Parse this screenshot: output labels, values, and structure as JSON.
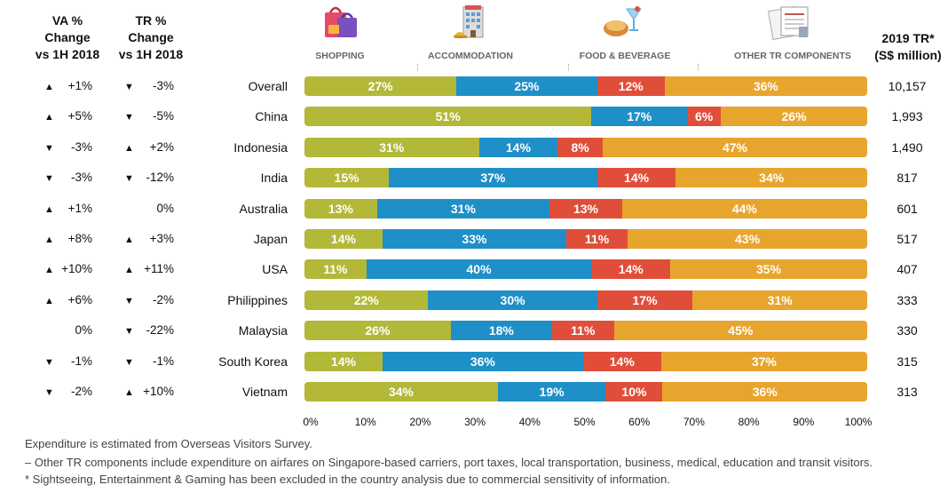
{
  "headers": {
    "va": [
      "VA %",
      "Change",
      "vs 1H 2018"
    ],
    "tr": [
      "TR %",
      "Change",
      "vs 1H 2018"
    ],
    "total": [
      "2019 TR*",
      "(S$ million)"
    ]
  },
  "categories": [
    {
      "label": "SHOPPING",
      "icon": "shopping-bags-icon",
      "color": "#b3b838"
    },
    {
      "label": "ACCOMMODATION",
      "icon": "hotel-building-icon",
      "color": "#1f8fc7"
    },
    {
      "label": "FOOD & BEVERAGE",
      "icon": "food-drink-icon",
      "color": "#e04e3a"
    },
    {
      "label": "OTHER TR COMPONENTS",
      "icon": "documents-icon",
      "color": "#e8a52e"
    }
  ],
  "chart_data": {
    "type": "bar",
    "orientation": "horizontal",
    "stacked": true,
    "xlim": [
      0,
      100
    ],
    "xticks": [
      "0%",
      "10%",
      "20%",
      "30%",
      "40%",
      "50%",
      "60%",
      "70%",
      "80%",
      "90%",
      "100%"
    ],
    "rows": [
      {
        "country": "Overall",
        "va_dir": "up",
        "va": "+1%",
        "tr_dir": "down",
        "tr": "-3%",
        "total": "10,157",
        "values": [
          27,
          25,
          12,
          36
        ],
        "labels": [
          "27%",
          "25%",
          "12%",
          "36%"
        ]
      },
      {
        "country": "China",
        "va_dir": "up",
        "va": "+5%",
        "tr_dir": "down",
        "tr": "-5%",
        "total": "1,993",
        "values": [
          51,
          17,
          6,
          26
        ],
        "labels": [
          "51%",
          "17%",
          "6%",
          "26%"
        ]
      },
      {
        "country": "Indonesia",
        "va_dir": "down",
        "va": "-3%",
        "tr_dir": "up",
        "tr": "+2%",
        "total": "1,490",
        "values": [
          31,
          14,
          8,
          47
        ],
        "labels": [
          "31%",
          "14%",
          "8%",
          "47%"
        ]
      },
      {
        "country": "India",
        "va_dir": "down",
        "va": "-3%",
        "tr_dir": "down",
        "tr": "-12%",
        "total": "817",
        "values": [
          15,
          37,
          14,
          34
        ],
        "labels": [
          "15%",
          "37%",
          "14%",
          "34%"
        ]
      },
      {
        "country": "Australia",
        "va_dir": "up",
        "va": "+1%",
        "tr_dir": "",
        "tr": "0%",
        "total": "601",
        "values": [
          13,
          31,
          13,
          44
        ],
        "labels": [
          "13%",
          "31%",
          "13%",
          "44%"
        ]
      },
      {
        "country": "Japan",
        "va_dir": "up",
        "va": "+8%",
        "tr_dir": "up",
        "tr": "+3%",
        "total": "517",
        "values": [
          14,
          33,
          11,
          43
        ],
        "labels": [
          "14%",
          "33%",
          "11%",
          "43%"
        ]
      },
      {
        "country": "USA",
        "va_dir": "up",
        "va": "+10%",
        "tr_dir": "up",
        "tr": "+11%",
        "total": "407",
        "values": [
          11,
          40,
          14,
          35
        ],
        "labels": [
          "11%",
          "40%",
          "14%",
          "35%"
        ]
      },
      {
        "country": "Philippines",
        "va_dir": "up",
        "va": "+6%",
        "tr_dir": "down",
        "tr": "-2%",
        "total": "333",
        "values": [
          22,
          30,
          17,
          31
        ],
        "labels": [
          "22%",
          "30%",
          "17%",
          "31%"
        ]
      },
      {
        "country": "Malaysia",
        "va_dir": "",
        "va": "0%",
        "tr_dir": "down",
        "tr": "-22%",
        "total": "330",
        "values": [
          26,
          18,
          11,
          45
        ],
        "labels": [
          "26%",
          "18%",
          "11%",
          "45%"
        ]
      },
      {
        "country": "South Korea",
        "va_dir": "down",
        "va": "-1%",
        "tr_dir": "down",
        "tr": "-1%",
        "total": "315",
        "values": [
          14,
          36,
          14,
          37
        ],
        "labels": [
          "14%",
          "36%",
          "14%",
          "37%"
        ]
      },
      {
        "country": "Vietnam",
        "va_dir": "down",
        "va": "-2%",
        "tr_dir": "up",
        "tr": "+10%",
        "total": "313",
        "values": [
          34,
          19,
          10,
          36
        ],
        "labels": [
          "34%",
          "19%",
          "10%",
          "36%"
        ]
      }
    ]
  },
  "notes": [
    "Expenditure is estimated from Overseas Visitors Survey.",
    "– Other TR components include expenditure on airfares on Singapore-based carriers, port taxes, local transportation, business, medical, education and transit visitors.",
    "* Sightseeing, Entertainment & Gaming has been excluded in the country analysis due to commercial sensitivity of information."
  ]
}
